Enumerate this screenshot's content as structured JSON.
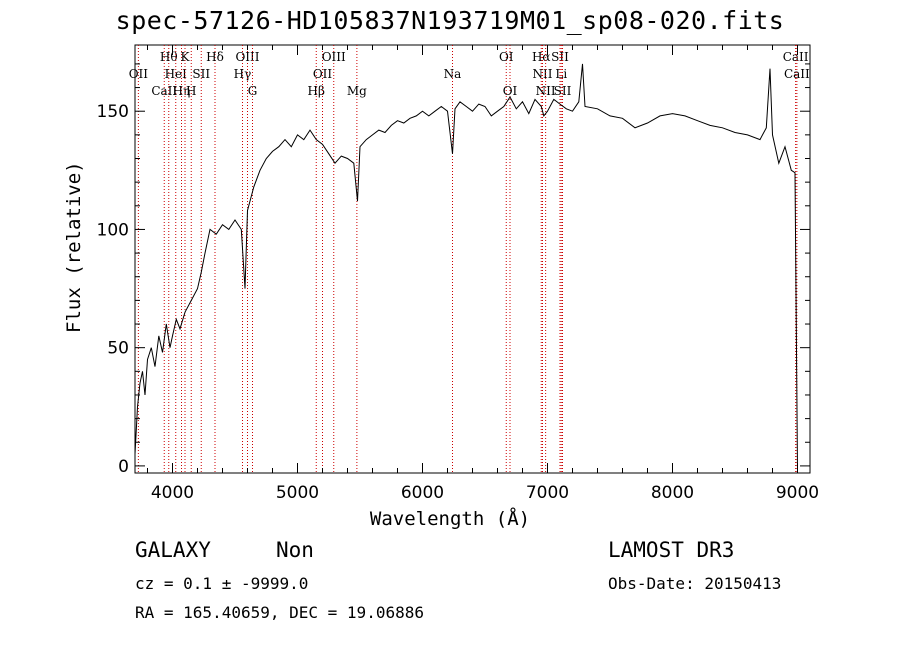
{
  "chart_data": {
    "type": "line",
    "title": "spec-57126-HD105837N193719M01_sp08-020.fits",
    "xlabel": "Wavelength (Å)",
    "ylabel": "Flux (relative)",
    "xlim": [
      3700,
      9100
    ],
    "ylim": [
      -3,
      178
    ],
    "xticks": [
      4000,
      5000,
      6000,
      7000,
      8000,
      9000
    ],
    "yticks": [
      0,
      50,
      100,
      150
    ],
    "grid": false,
    "series": [
      {
        "x": [
          3700,
          3720,
          3740,
          3760,
          3780,
          3800,
          3830,
          3860,
          3890,
          3920,
          3950,
          3980,
          4000,
          4030,
          4060,
          4100,
          4150,
          4200,
          4230,
          4260,
          4300,
          4350,
          4400,
          4450,
          4500,
          4550,
          4580,
          4600,
          4620,
          4650,
          4700,
          4750,
          4800,
          4850,
          4900,
          4950,
          5000,
          5050,
          5100,
          5150,
          5200,
          5250,
          5300,
          5350,
          5400,
          5450,
          5480,
          5500,
          5550,
          5600,
          5650,
          5700,
          5750,
          5800,
          5850,
          5900,
          5950,
          6000,
          6050,
          6100,
          6150,
          6200,
          6240,
          6260,
          6300,
          6350,
          6400,
          6450,
          6500,
          6550,
          6600,
          6650,
          6700,
          6750,
          6800,
          6850,
          6900,
          6950,
          6970,
          7000,
          7050,
          7100,
          7150,
          7200,
          7250,
          7280,
          7300,
          7400,
          7500,
          7600,
          7700,
          7800,
          7900,
          8000,
          8100,
          8200,
          8300,
          8400,
          8500,
          8600,
          8700,
          8750,
          8780,
          8800,
          8850,
          8900,
          8950,
          8980,
          9000
        ],
        "values": [
          5,
          25,
          35,
          40,
          30,
          45,
          50,
          42,
          55,
          48,
          60,
          50,
          55,
          62,
          58,
          65,
          70,
          75,
          82,
          90,
          100,
          98,
          102,
          100,
          104,
          100,
          75,
          108,
          112,
          118,
          125,
          130,
          133,
          135,
          138,
          135,
          140,
          138,
          142,
          138,
          136,
          132,
          128,
          131,
          130,
          128,
          112,
          135,
          138,
          140,
          142,
          141,
          144,
          146,
          145,
          147,
          148,
          150,
          148,
          150,
          152,
          150,
          132,
          151,
          154,
          152,
          150,
          153,
          152,
          148,
          150,
          152,
          156,
          151,
          154,
          149,
          155,
          152,
          148,
          150,
          155,
          153,
          151,
          150,
          154,
          170,
          152,
          151,
          148,
          147,
          143,
          145,
          148,
          149,
          148,
          146,
          144,
          143,
          141,
          140,
          138,
          143,
          168,
          140,
          128,
          135,
          125,
          124,
          -2
        ]
      }
    ],
    "spectral_lines": [
      {
        "label": "OII",
        "x": 3727,
        "row": 2
      },
      {
        "label": "CaII",
        "x": 3934,
        "row": 3
      },
      {
        "label": "Hθ",
        "x": 3970,
        "row": 1
      },
      {
        "label": "HeI",
        "x": 4026,
        "row": 2
      },
      {
        "label": "Hη",
        "x": 4072,
        "row": 3
      },
      {
        "label": "K",
        "x": 4100,
        "row": 1
      },
      {
        "label": "H",
        "x": 4150,
        "row": 3
      },
      {
        "label": "SII",
        "x": 4230,
        "row": 2
      },
      {
        "label": "Hδ",
        "x": 4340,
        "row": 1
      },
      {
        "label": "Hγ",
        "x": 4560,
        "row": 2
      },
      {
        "label": "OIII",
        "x": 4600,
        "row": 1
      },
      {
        "label": "G",
        "x": 4640,
        "row": 3
      },
      {
        "label": "Hβ",
        "x": 5150,
        "row": 3
      },
      {
        "label": "OII",
        "x": 5200,
        "row": 2
      },
      {
        "label": "OIII",
        "x": 5290,
        "row": 1
      },
      {
        "label": "Mg",
        "x": 5475,
        "row": 3
      },
      {
        "label": "Na",
        "x": 6240,
        "row": 2
      },
      {
        "label": "OI",
        "x": 6670,
        "row": 1
      },
      {
        "label": "OI",
        "x": 6700,
        "row": 3
      },
      {
        "label": "Hα",
        "x": 6950,
        "row": 1
      },
      {
        "label": "NII",
        "x": 6960,
        "row": 2
      },
      {
        "label": "NII",
        "x": 6985,
        "row": 3
      },
      {
        "label": "SII",
        "x": 7100,
        "row": 1
      },
      {
        "label": "Li",
        "x": 7110,
        "row": 2
      },
      {
        "label": "SII",
        "x": 7120,
        "row": 3
      },
      {
        "label": "CaII",
        "x": 8985,
        "row": 1
      },
      {
        "label": "CaII",
        "x": 8995,
        "row": 2
      }
    ],
    "colors": {
      "spectrum": "#000000",
      "line_markers": "#cc0000"
    }
  },
  "footer": {
    "object_class": "GALAXY",
    "subclass": "Non",
    "survey": "LAMOST DR3",
    "cz": "cz = 0.1 ± -9999.0",
    "obs_date": "Obs-Date: 20150413",
    "coords": "RA = 165.40659, DEC =  19.06886"
  }
}
